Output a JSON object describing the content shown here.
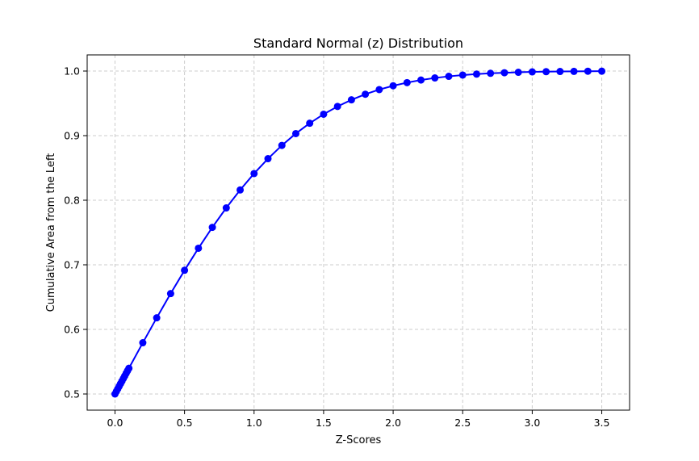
{
  "chart_data": {
    "type": "line",
    "title": "Standard Normal (z) Distribution",
    "xlabel": "Z-Scores",
    "ylabel": "Cumulative Area from the Left",
    "xlim": [
      -0.2,
      3.7
    ],
    "ylim": [
      0.475,
      1.025
    ],
    "xticks": [
      0.0,
      0.5,
      1.0,
      1.5,
      2.0,
      2.5,
      3.0,
      3.5
    ],
    "xtick_labels": [
      "0.0",
      "0.5",
      "1.0",
      "1.5",
      "2.0",
      "2.5",
      "3.0",
      "3.5"
    ],
    "yticks": [
      0.5,
      0.6,
      0.7,
      0.8,
      0.9,
      1.0
    ],
    "ytick_labels": [
      "0.5",
      "0.6",
      "0.7",
      "0.8",
      "0.9",
      "1.0"
    ],
    "grid": true,
    "series": [
      {
        "color": "#0000ff",
        "marker": "circle",
        "x": [
          0.0,
          0.01,
          0.02,
          0.03,
          0.04,
          0.05,
          0.06,
          0.07,
          0.08,
          0.09,
          0.1,
          0.2,
          0.3,
          0.4,
          0.5,
          0.6,
          0.7,
          0.8,
          0.9,
          1.0,
          1.1,
          1.2,
          1.3,
          1.4,
          1.5,
          1.6,
          1.7,
          1.8,
          1.9,
          2.0,
          2.1,
          2.2,
          2.3,
          2.4,
          2.5,
          2.6,
          2.7,
          2.8,
          2.9,
          3.0,
          3.1,
          3.2,
          3.3,
          3.4,
          3.5
        ],
        "y": [
          0.5,
          0.504,
          0.508,
          0.512,
          0.516,
          0.5199,
          0.5239,
          0.5279,
          0.5319,
          0.5359,
          0.5398,
          0.5793,
          0.6179,
          0.6554,
          0.6915,
          0.7257,
          0.758,
          0.7881,
          0.8159,
          0.8413,
          0.8643,
          0.8849,
          0.9032,
          0.9192,
          0.9332,
          0.9452,
          0.9554,
          0.9641,
          0.9713,
          0.9772,
          0.9821,
          0.9861,
          0.9893,
          0.9918,
          0.9938,
          0.9953,
          0.9965,
          0.9974,
          0.9981,
          0.9987,
          0.999,
          0.9993,
          0.9995,
          0.9997,
          0.9998
        ]
      }
    ]
  }
}
